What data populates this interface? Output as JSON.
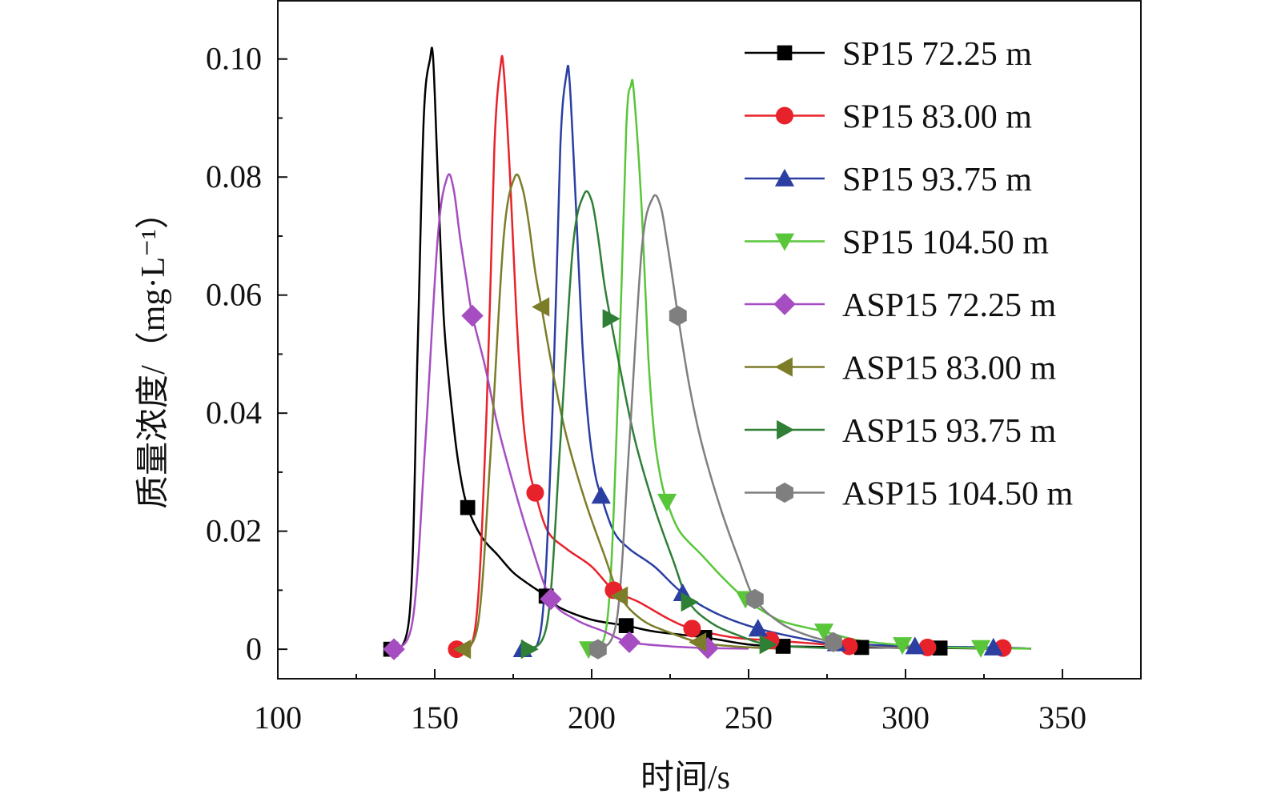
{
  "chart_data": {
    "type": "line",
    "xlabel": "时间/s",
    "ylabel": "质量浓度/（mg·L⁻¹）",
    "xlim": [
      100,
      375
    ],
    "ylim": [
      -0.005,
      0.11
    ],
    "x_ticks": [
      100,
      150,
      200,
      250,
      300,
      350
    ],
    "x_tick_labels": [
      "100",
      "150",
      "200",
      "250",
      "300",
      "350"
    ],
    "y_ticks": [
      0,
      0.02,
      0.04,
      0.06,
      0.08,
      0.1
    ],
    "y_tick_labels": [
      "0",
      "0.02",
      "0.04",
      "0.06",
      "0.08",
      "0.10"
    ],
    "grid": false,
    "legend_position": "top-right",
    "series": [
      {
        "name": "SP15 72.25 m",
        "color": "#000000",
        "marker": "square",
        "x": [
          136,
          142,
          144.5,
          146.5,
          148.5,
          149.5,
          151,
          153,
          156,
          158,
          160.5,
          165,
          170,
          175,
          180,
          185.5,
          190,
          200,
          211,
          220,
          236,
          250,
          261,
          286,
          311,
          330
        ],
        "y": [
          0,
          0.006,
          0.05,
          0.09,
          0.1,
          0.1,
          0.08,
          0.055,
          0.038,
          0.03,
          0.024,
          0.019,
          0.016,
          0.013,
          0.011,
          0.009,
          0.007,
          0.005,
          0.004,
          0.003,
          0.002,
          0.0008,
          0.0005,
          0.0003,
          0.0002,
          0.0001
        ],
        "marker_x": [
          136,
          160.5,
          185.5,
          211,
          236,
          261,
          286,
          311
        ],
        "marker_y": [
          0,
          0.024,
          0.009,
          0.004,
          0.002,
          0.0005,
          0.0003,
          0.0002
        ]
      },
      {
        "name": "SP15 83.00 m",
        "color": "#e8222a",
        "marker": "circle",
        "x": [
          157,
          163,
          166.5,
          169,
          171,
          172,
          174,
          176,
          178,
          180,
          182,
          186,
          192,
          200,
          207,
          215,
          225,
          232,
          245,
          257,
          270,
          282,
          307,
          331,
          340
        ],
        "y": [
          0,
          0.004,
          0.04,
          0.085,
          0.099,
          0.098,
          0.08,
          0.057,
          0.04,
          0.031,
          0.0265,
          0.02,
          0.017,
          0.014,
          0.01,
          0.008,
          0.005,
          0.0035,
          0.002,
          0.0015,
          0.001,
          0.0005,
          0.0003,
          0.0002,
          0.0001
        ],
        "marker_x": [
          157,
          182,
          207,
          232,
          257,
          282,
          307,
          331
        ],
        "marker_y": [
          0,
          0.0265,
          0.01,
          0.0035,
          0.0015,
          0.0005,
          0.0003,
          0.0002
        ]
      },
      {
        "name": "SP15 93.75 m",
        "color": "#2b3fa3",
        "marker": "triangle-up",
        "x": [
          178,
          184,
          187.5,
          190,
          192,
          193,
          195,
          197,
          199,
          201,
          203,
          207,
          212,
          220,
          229,
          240,
          253,
          270,
          278,
          303,
          328,
          340
        ],
        "y": [
          0,
          0.004,
          0.04,
          0.085,
          0.0975,
          0.096,
          0.075,
          0.052,
          0.038,
          0.03,
          0.026,
          0.02,
          0.017,
          0.014,
          0.0095,
          0.006,
          0.0035,
          0.0015,
          0.001,
          0.0005,
          0.0003,
          0.0001
        ],
        "marker_x": [
          178,
          203,
          229,
          253,
          278,
          303,
          328
        ],
        "marker_y": [
          0,
          0.026,
          0.0095,
          0.0035,
          0.001,
          0.0005,
          0.0003
        ]
      },
      {
        "name": "SP15 104.50 m",
        "color": "#59c63a",
        "marker": "triangle-down",
        "x": [
          199,
          205,
          208.5,
          211,
          212.5,
          213.5,
          216,
          218,
          220,
          222,
          224,
          228,
          235,
          242,
          249,
          256,
          262,
          274,
          285,
          299,
          312,
          324,
          340
        ],
        "y": [
          0,
          0.005,
          0.045,
          0.088,
          0.0955,
          0.094,
          0.074,
          0.05,
          0.036,
          0.029,
          0.025,
          0.02,
          0.016,
          0.012,
          0.0085,
          0.006,
          0.0045,
          0.003,
          0.0015,
          0.0007,
          0.0003,
          0.0002,
          0.0001
        ],
        "marker_x": [
          199,
          224,
          249,
          274,
          299,
          324
        ],
        "marker_y": [
          0,
          0.025,
          0.0085,
          0.003,
          0.0007,
          0.0002
        ]
      },
      {
        "name": "ASP15 72.25 m",
        "color": "#a54dc1",
        "marker": "diamond",
        "x": [
          137,
          143,
          147,
          151,
          154,
          156,
          158,
          160,
          162,
          166,
          170,
          175,
          180,
          187,
          195,
          204,
          212,
          225,
          237,
          250
        ],
        "y": [
          0,
          0.005,
          0.035,
          0.07,
          0.08,
          0.078,
          0.07,
          0.063,
          0.0565,
          0.048,
          0.038,
          0.028,
          0.019,
          0.0085,
          0.005,
          0.003,
          0.0012,
          0.0005,
          0.0002,
          0.0001
        ],
        "marker_x": [
          137,
          162,
          187,
          212,
          237
        ],
        "marker_y": [
          0,
          0.0565,
          0.0085,
          0.0012,
          0.0002
        ]
      },
      {
        "name": "ASP15 83.00 m",
        "color": "#7b7d28",
        "marker": "triangle-left",
        "x": [
          159,
          164,
          168,
          172,
          175.5,
          178,
          180,
          182,
          184,
          188,
          192,
          198,
          204,
          209,
          216,
          224,
          234,
          245,
          259
        ],
        "y": [
          0,
          0.005,
          0.035,
          0.07,
          0.08,
          0.078,
          0.072,
          0.064,
          0.058,
          0.046,
          0.036,
          0.025,
          0.016,
          0.009,
          0.005,
          0.003,
          0.0012,
          0.0005,
          0.0001
        ],
        "marker_x": [
          159,
          184,
          209,
          234
        ],
        "marker_y": [
          0,
          0.058,
          0.009,
          0.0012
        ]
      },
      {
        "name": "ASP15 93.75 m",
        "color": "#2f7f36",
        "marker": "triangle-right",
        "x": [
          180,
          186,
          190,
          194,
          197.5,
          200,
          202,
          204,
          206,
          210,
          214,
          220,
          226,
          231,
          238,
          246,
          256,
          270,
          281
        ],
        "y": [
          0,
          0.005,
          0.035,
          0.068,
          0.077,
          0.076,
          0.07,
          0.062,
          0.056,
          0.045,
          0.035,
          0.024,
          0.015,
          0.008,
          0.0045,
          0.0025,
          0.0008,
          0.0003,
          0.0001
        ],
        "marker_x": [
          180,
          206,
          231,
          256
        ],
        "marker_y": [
          0,
          0.056,
          0.008,
          0.0008
        ]
      },
      {
        "name": "ASP15 104.50 m",
        "color": "#7f7f7f",
        "marker": "hexagon",
        "x": [
          202,
          208,
          212,
          216,
          219.5,
          222,
          224,
          226,
          227.5,
          231,
          235,
          241,
          247,
          252,
          260,
          268,
          277,
          290,
          302
        ],
        "y": [
          0,
          0.005,
          0.035,
          0.068,
          0.0765,
          0.075,
          0.069,
          0.062,
          0.0565,
          0.045,
          0.035,
          0.024,
          0.015,
          0.0085,
          0.0045,
          0.0025,
          0.0012,
          0.0004,
          0.0001
        ],
        "marker_x": [
          202,
          227.5,
          252,
          277
        ],
        "marker_y": [
          0,
          0.0565,
          0.0085,
          0.0012
        ]
      }
    ]
  }
}
